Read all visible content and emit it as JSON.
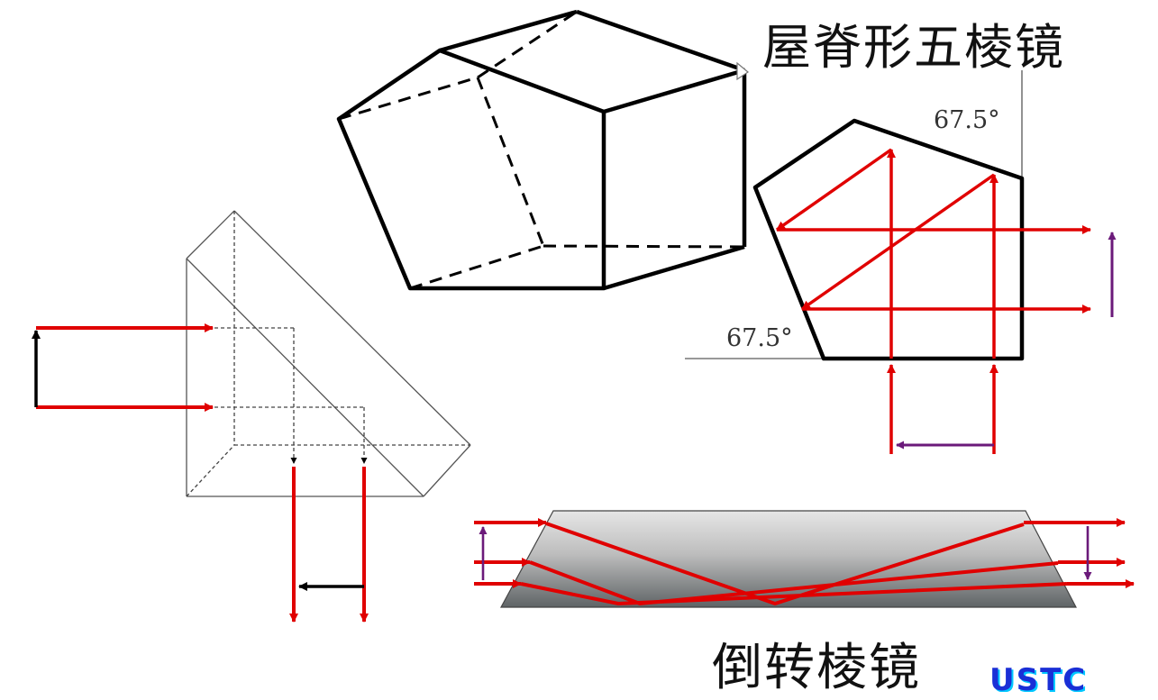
{
  "titles": {
    "roof_pentaprism": "屋脊形五棱镜",
    "inverting_prism": "倒转棱镜"
  },
  "angles": {
    "top": "67.5°",
    "bottom": "67.5°"
  },
  "logo": "USTC",
  "colors": {
    "ray": "#e00000",
    "image_arrow": "#6b1a7a",
    "outline": "#000000",
    "thin_outline": "#555555"
  }
}
